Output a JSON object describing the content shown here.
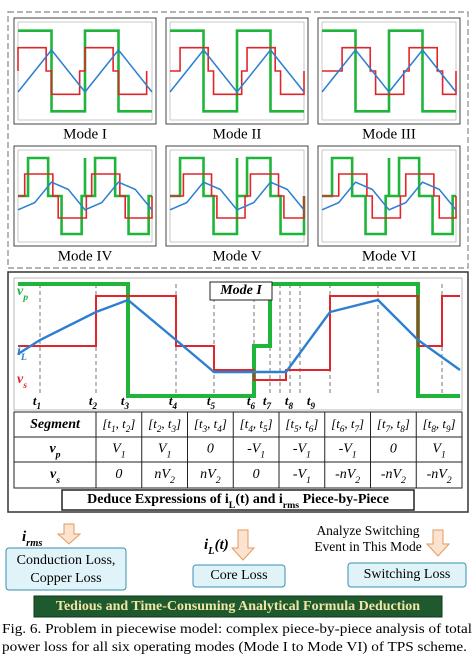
{
  "modes": [
    "Mode I",
    "Mode II",
    "Mode III",
    "Mode IV",
    "Mode V",
    "Mode VI"
  ],
  "detail": {
    "title": "Mode I",
    "vp": "vp",
    "iL": "iL",
    "vs": "vs",
    "times": [
      "t1",
      "t2",
      "t3",
      "t4",
      "t5",
      "t6",
      "t7",
      "t8",
      "t9"
    ]
  },
  "table": {
    "header": [
      "Segment",
      "[t1, t2]",
      "[t2, t3]",
      "[t3, t4]",
      "[t4, t5]",
      "[t5, t6]",
      "[t6, t7]",
      "[t7, t8]",
      "[t8, t9]"
    ],
    "rows": [
      [
        "vp",
        "V1",
        "V1",
        "0",
        "-V1",
        "-V1",
        "-V1",
        "0",
        "V1"
      ],
      [
        "vs",
        "0",
        "nV2",
        "nV2",
        "0",
        "-V1",
        "-nV2",
        "-nV2",
        "-nV2"
      ]
    ]
  },
  "deduce": "Deduce Expressions of iL(t) and irms Piece-by-Piece",
  "flows": [
    {
      "input": "irms",
      "output_lines": [
        "Conduction Loss,",
        "Copper Loss"
      ]
    },
    {
      "input": "iL(t)",
      "output_lines": [
        "Core Loss"
      ]
    },
    {
      "input_lines": [
        "Analyze Switching",
        "Event in This Mode"
      ],
      "output_lines": [
        "Switching Loss"
      ]
    }
  ],
  "banner": "Tedious and Time-Consuming Analytical Formula Deduction",
  "caption": [
    "Fig. 6. Problem in piecewise model: complex piece-by-piece analysis of total",
    "power loss for all six operating modes (Mode I to Mode VI) of TPS scheme."
  ]
}
